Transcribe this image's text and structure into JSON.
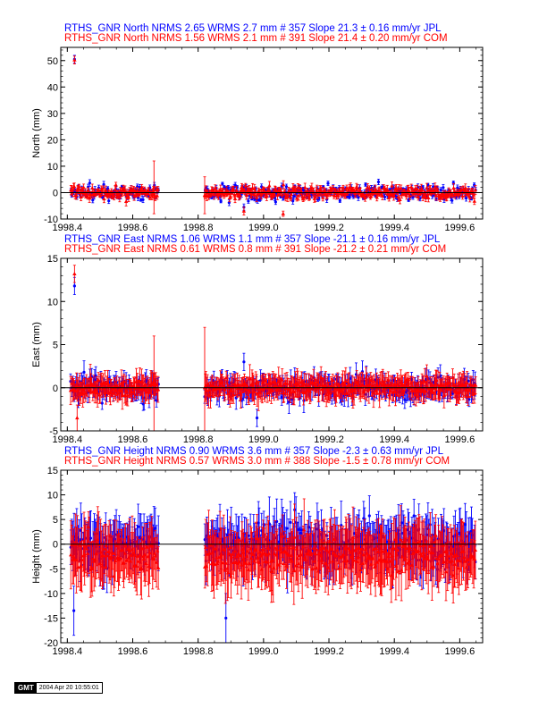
{
  "colors": {
    "jpl": "#0000ff",
    "com": "#ff0000",
    "axis": "#000000",
    "zero_line": "#000000"
  },
  "chart_data": [
    {
      "type": "scatter",
      "component": "north",
      "title_lines": [
        {
          "text": "RTHS_GNR North NRMS 2.65 WRMS  2.7 mm # 357 Slope   21.3 ±  0.16 mm/yr JPL",
          "color": "#0000ff"
        },
        {
          "text": "RTHS_GNR North NRMS 1.56 WRMS  2.1 mm # 391 Slope   21.4 ±  0.20 mm/yr COM",
          "color": "#ff0000"
        }
      ],
      "ylabel": "North (mm)",
      "xlim": [
        1998.38,
        1999.67
      ],
      "ylim": [
        -10,
        55
      ],
      "xticks": [
        1998.4,
        1998.6,
        1998.8,
        1999.0,
        1999.2,
        1999.4,
        1999.6
      ],
      "xtick_labels": [
        "1998.4",
        "1998.6",
        "1998.8",
        "1999.0",
        "1999.2",
        "1999.4",
        "1999.6"
      ],
      "yticks": [
        -10,
        0,
        10,
        20,
        30,
        40,
        50
      ],
      "ytick_labels": [
        "-10",
        "0",
        "10",
        "20",
        "30",
        "40",
        "50"
      ],
      "zero_line": true,
      "series": [
        {
          "name": "JPL",
          "marker": "circle",
          "color": "#0000ff",
          "n_points": 357,
          "wrms_mm": 2.7,
          "nrms": 2.65,
          "slope_mm_yr": 21.3,
          "slope_sigma": 0.16,
          "typical_sigma_mm": 0.9,
          "segments": [
            [
              1998.41,
              1998.68
            ],
            [
              1998.82,
              1999.65
            ]
          ],
          "outliers": [
            {
              "x": 1998.422,
              "y": 50.5,
              "sigma": 1.5
            },
            {
              "x": 1998.94,
              "y": -5.5,
              "sigma": 1.2
            }
          ]
        },
        {
          "name": "COM",
          "marker": "triangle",
          "color": "#ff0000",
          "n_points": 391,
          "wrms_mm": 2.1,
          "nrms": 1.56,
          "slope_mm_yr": 21.4,
          "slope_sigma": 0.2,
          "typical_sigma_mm": 1.3,
          "segments": [
            [
              1998.41,
              1998.68
            ],
            [
              1998.82,
              1999.65
            ]
          ],
          "outliers": [
            {
              "x": 1998.422,
              "y": 50.2,
              "sigma": 1.5
            },
            {
              "x": 1998.94,
              "y": -7.0,
              "sigma": 1.5
            },
            {
              "x": 1999.06,
              "y": -8.0,
              "sigma": 1.0
            },
            {
              "x": 1998.665,
              "y": 2.0,
              "sigma": 10.0
            },
            {
              "x": 1998.82,
              "y": -1.0,
              "sigma": 7.0
            }
          ]
        }
      ]
    },
    {
      "type": "scatter",
      "component": "east",
      "title_lines": [
        {
          "text": "RTHS_GNR East NRMS 1.06 WRMS  1.1 mm # 357 Slope  -21.1 ±  0.16 mm/yr JPL",
          "color": "#0000ff"
        },
        {
          "text": "RTHS_GNR East NRMS 0.61 WRMS  0.8 mm # 391 Slope  -21.2 ±  0.21 mm/yr COM",
          "color": "#ff0000"
        }
      ],
      "ylabel": "East (mm)",
      "xlim": [
        1998.38,
        1999.67
      ],
      "ylim": [
        -5,
        15
      ],
      "xticks": [
        1998.4,
        1998.6,
        1998.8,
        1999.0,
        1999.2,
        1999.4,
        1999.6
      ],
      "xtick_labels": [
        "1998.4",
        "1998.6",
        "1998.8",
        "1999.0",
        "1999.2",
        "1999.4",
        "1999.6"
      ],
      "yticks": [
        -5,
        0,
        5,
        10,
        15
      ],
      "ytick_labels": [
        "-5",
        "0",
        "5",
        "10",
        "15"
      ],
      "zero_line": true,
      "series": [
        {
          "name": "JPL",
          "marker": "circle",
          "color": "#0000ff",
          "n_points": 357,
          "wrms_mm": 1.1,
          "nrms": 1.06,
          "slope_mm_yr": -21.1,
          "slope_sigma": 0.16,
          "typical_sigma_mm": 1.0,
          "segments": [
            [
              1998.41,
              1998.68
            ],
            [
              1998.82,
              1999.65
            ]
          ],
          "outliers": [
            {
              "x": 1998.422,
              "y": 11.8,
              "sigma": 1.0
            },
            {
              "x": 1998.94,
              "y": 3.0,
              "sigma": 1.0
            },
            {
              "x": 1998.98,
              "y": -3.5,
              "sigma": 1.0
            }
          ]
        },
        {
          "name": "COM",
          "marker": "triangle",
          "color": "#ff0000",
          "n_points": 391,
          "wrms_mm": 0.8,
          "nrms": 0.61,
          "slope_mm_yr": -21.2,
          "slope_sigma": 0.21,
          "typical_sigma_mm": 1.2,
          "segments": [
            [
              1998.41,
              1998.68
            ],
            [
              1998.82,
              1999.65
            ]
          ],
          "outliers": [
            {
              "x": 1998.422,
              "y": 13.2,
              "sigma": 1.0
            },
            {
              "x": 1998.43,
              "y": -3.5,
              "sigma": 1.5
            },
            {
              "x": 1998.665,
              "y": 0.0,
              "sigma": 6.0
            },
            {
              "x": 1998.82,
              "y": 0.0,
              "sigma": 7.0
            }
          ]
        }
      ]
    },
    {
      "type": "scatter",
      "component": "height",
      "title_lines": [
        {
          "text": "RTHS_GNR Height NRMS 0.90 WRMS  3.6 mm # 357 Slope   -2.3 ±  0.63 mm/yr JPL",
          "color": "#0000ff"
        },
        {
          "text": "RTHS_GNR Height NRMS 0.57 WRMS  3.0 mm # 388 Slope   -1.5 ±  0.78 mm/yr COM",
          "color": "#ff0000"
        }
      ],
      "ylabel": "Height (mm)",
      "xlim": [
        1998.38,
        1999.67
      ],
      "ylim": [
        -20,
        15
      ],
      "xticks": [
        1998.4,
        1998.6,
        1998.8,
        1999.0,
        1999.2,
        1999.4,
        1999.6
      ],
      "xtick_labels": [
        "1998.4",
        "1998.6",
        "1998.8",
        "1999.0",
        "1999.2",
        "1999.4",
        "1999.6"
      ],
      "yticks": [
        -20,
        -15,
        -10,
        -5,
        0,
        5,
        10,
        15
      ],
      "ytick_labels": [
        "-20",
        "-15",
        "-10",
        "-5",
        "0",
        "5",
        "10",
        "15"
      ],
      "zero_line": true,
      "series": [
        {
          "name": "JPL",
          "marker": "circle",
          "color": "#0000ff",
          "n_points": 357,
          "wrms_mm": 3.6,
          "nrms": 0.9,
          "slope_mm_yr": -2.3,
          "slope_sigma": 0.63,
          "typical_sigma_mm": 4.0,
          "segments": [
            [
              1998.41,
              1998.68
            ],
            [
              1998.82,
              1999.65
            ]
          ],
          "outliers": [
            {
              "x": 1998.42,
              "y": -13.5,
              "sigma": 5.0
            },
            {
              "x": 1998.885,
              "y": -15.0,
              "sigma": 5.0
            }
          ]
        },
        {
          "name": "COM",
          "marker": "triangle",
          "color": "#ff0000",
          "n_points": 388,
          "wrms_mm": 3.0,
          "nrms": 0.57,
          "slope_mm_yr": -1.5,
          "slope_sigma": 0.78,
          "typical_sigma_mm": 5.0,
          "segments": [
            [
              1998.41,
              1998.68
            ],
            [
              1998.82,
              1999.65
            ]
          ],
          "outliers": []
        }
      ]
    }
  ],
  "footer": {
    "logo": "GMT",
    "timestamp": "2004 Apr 20 10:55:01"
  }
}
